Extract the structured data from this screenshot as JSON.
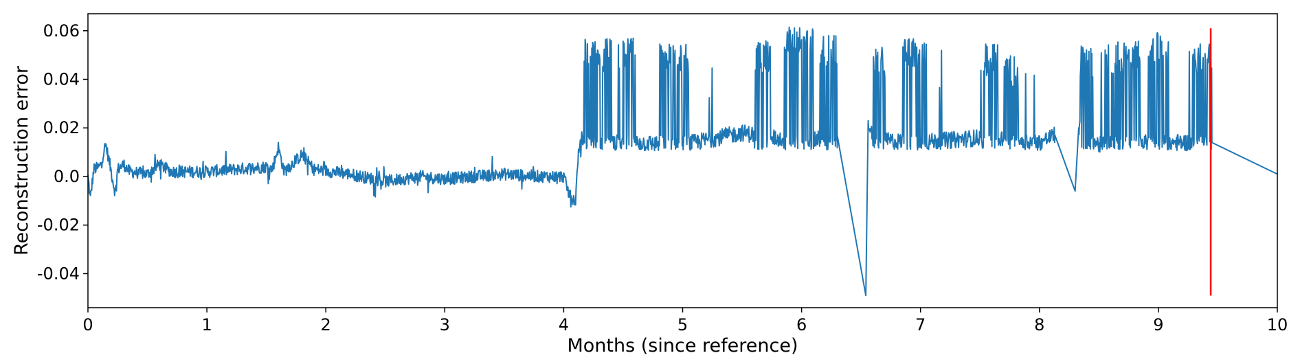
{
  "chart_data": {
    "type": "line",
    "title": "",
    "xlabel": "Months (since reference)",
    "ylabel": "Reconstruction error",
    "xlim": [
      0,
      10
    ],
    "ylim": [
      -0.054,
      0.067
    ],
    "x_ticks": [
      0,
      1,
      2,
      3,
      4,
      5,
      6,
      7,
      8,
      9,
      10
    ],
    "x_tick_labels": [
      "0",
      "1",
      "2",
      "3",
      "4",
      "5",
      "6",
      "7",
      "8",
      "9",
      "10"
    ],
    "y_ticks": [
      0.06,
      0.04,
      0.02,
      0.0,
      -0.02,
      -0.04
    ],
    "y_tick_labels": [
      "0.06",
      "0.04",
      "0.02",
      "0.0",
      "-0.02",
      "-0.04"
    ],
    "grid": false,
    "legend": "none",
    "series": [
      {
        "color": "#1f77b4",
        "description": "noisy reconstruction error; low regime near 0 until ~4.1 months, then elevated regime ~0.013 with frequent spikes to ~0.055",
        "anchor_points": [
          [
            0.0,
            0.0
          ],
          [
            0.02,
            -0.009
          ],
          [
            0.05,
            0.003
          ],
          [
            0.1,
            0.004
          ],
          [
            0.15,
            0.013
          ],
          [
            0.18,
            0.006
          ],
          [
            0.23,
            -0.007
          ],
          [
            0.25,
            0.003
          ],
          [
            0.3,
            0.005
          ],
          [
            0.35,
            0.002
          ],
          [
            0.5,
            0.001
          ],
          [
            0.6,
            0.005
          ],
          [
            0.7,
            0.002
          ],
          [
            1.0,
            0.002
          ],
          [
            1.5,
            0.004
          ],
          [
            1.55,
            0.003
          ],
          [
            1.6,
            0.012
          ],
          [
            1.65,
            0.002
          ],
          [
            1.8,
            0.009
          ],
          [
            1.9,
            0.003
          ],
          [
            2.2,
            0.001
          ],
          [
            2.5,
            -0.002
          ],
          [
            2.8,
            0.0
          ],
          [
            3.0,
            -0.001
          ],
          [
            3.5,
            0.001
          ],
          [
            3.8,
            0.0
          ],
          [
            4.0,
            0.0
          ],
          [
            4.05,
            -0.008
          ],
          [
            4.1,
            -0.01
          ],
          [
            4.12,
            0.008
          ],
          [
            4.15,
            0.015
          ],
          [
            5.0,
            0.013
          ],
          [
            5.5,
            0.018
          ],
          [
            6.0,
            0.014
          ],
          [
            6.3,
            0.017
          ],
          [
            6.54,
            -0.049
          ],
          [
            6.56,
            0.023
          ],
          [
            6.6,
            0.015
          ],
          [
            7.0,
            0.014
          ],
          [
            7.5,
            0.016
          ],
          [
            8.0,
            0.014
          ],
          [
            8.13,
            0.017
          ],
          [
            8.3,
            -0.006
          ],
          [
            8.33,
            0.02
          ],
          [
            8.5,
            0.013
          ],
          [
            9.0,
            0.014
          ],
          [
            9.4,
            0.014
          ],
          [
            9.45,
            0.014
          ],
          [
            10.0,
            0.001
          ]
        ],
        "spike_bursts": [
          [
            4.17,
            4.4,
            0.055
          ],
          [
            4.45,
            4.6,
            0.055
          ],
          [
            4.8,
            5.05,
            0.053
          ],
          [
            5.6,
            5.75,
            0.054
          ],
          [
            5.85,
            6.1,
            0.06
          ],
          [
            6.15,
            6.3,
            0.056
          ],
          [
            6.6,
            6.7,
            0.052
          ],
          [
            6.85,
            7.05,
            0.055
          ],
          [
            7.5,
            7.65,
            0.053
          ],
          [
            7.7,
            7.82,
            0.048
          ],
          [
            8.2,
            8.3,
            0.04
          ],
          [
            8.34,
            8.45,
            0.052
          ],
          [
            8.55,
            8.85,
            0.054
          ],
          [
            8.9,
            9.1,
            0.058
          ],
          [
            9.28,
            9.45,
            0.054
          ]
        ]
      },
      {
        "color": "#ff0000",
        "description": "vertical marker line",
        "x": 9.44,
        "y_range": [
          -0.049,
          0.061
        ]
      }
    ]
  }
}
